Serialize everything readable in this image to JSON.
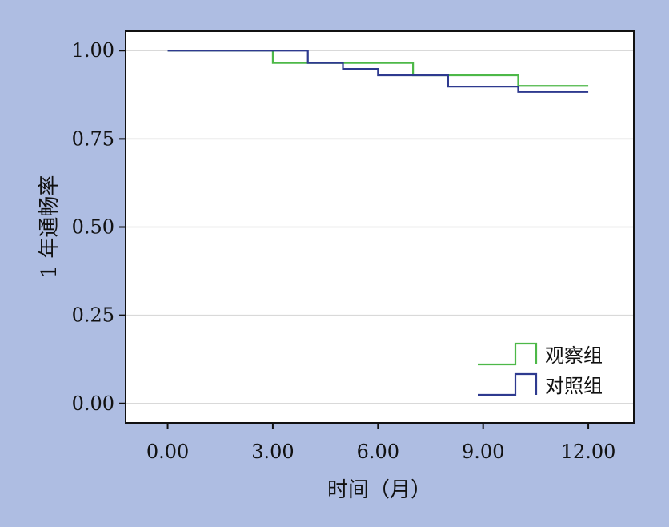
{
  "chart_data": {
    "type": "line",
    "step": true,
    "xlabel": "时间（月）",
    "ylabel": "1 年通畅率",
    "xlim": [
      -1.2,
      13.3
    ],
    "ylim": [
      -0.055,
      1.055
    ],
    "xticks": [
      0,
      3,
      6,
      9,
      12
    ],
    "xtick_labels": [
      "0.00",
      "3.00",
      "6.00",
      "9.00",
      "12.00"
    ],
    "yticks": [
      0,
      0.25,
      0.5,
      0.75,
      1.0
    ],
    "ytick_labels": [
      "0.00",
      "0.25",
      "0.50",
      "0.75",
      "1.00"
    ],
    "grid": "horizontal",
    "legend_position": "bottom-right",
    "series": [
      {
        "name": "观察组",
        "color": "#4db848",
        "x": [
          0,
          3,
          3,
          5,
          5,
          7,
          7,
          10,
          10,
          12
        ],
        "y": [
          1.0,
          1.0,
          0.965,
          0.965,
          0.965,
          0.965,
          0.93,
          0.9,
          0.9,
          0.9
        ]
      },
      {
        "name": "对照组",
        "color": "#2e3a8f",
        "x": [
          0,
          4,
          4,
          5,
          5,
          6,
          6,
          8,
          8,
          10,
          10,
          12
        ],
        "y": [
          1.0,
          1.0,
          0.965,
          0.965,
          0.948,
          0.948,
          0.93,
          0.93,
          0.898,
          0.898,
          0.883,
          0.883
        ]
      }
    ]
  }
}
